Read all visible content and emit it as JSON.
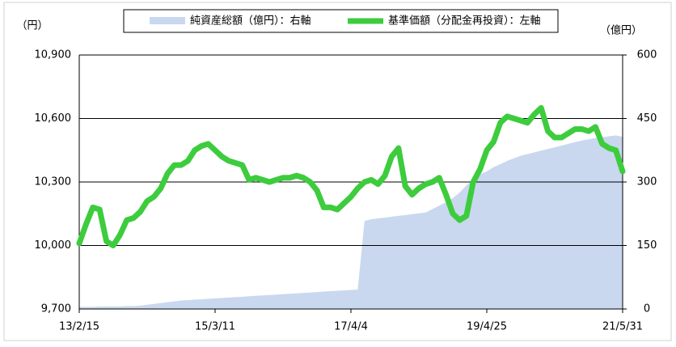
{
  "chart_data": {
    "type": "line-area",
    "left_axis_label": "（円）",
    "right_axis_label": "（億円）",
    "categories": [
      "13/2/15",
      null,
      null,
      null,
      null,
      null,
      null,
      null,
      null,
      null,
      null,
      null,
      null,
      null,
      null,
      null,
      null,
      null,
      null,
      null,
      "15/3/11",
      null,
      null,
      null,
      null,
      null,
      null,
      null,
      null,
      null,
      null,
      null,
      null,
      null,
      null,
      null,
      null,
      null,
      null,
      null,
      "17/4/4",
      null,
      null,
      null,
      null,
      null,
      null,
      null,
      null,
      null,
      null,
      null,
      null,
      null,
      null,
      null,
      null,
      null,
      null,
      null,
      "19/4/25",
      null,
      null,
      null,
      null,
      null,
      null,
      null,
      null,
      null,
      null,
      null,
      null,
      null,
      null,
      null,
      null,
      null,
      null,
      null,
      "21/5/31"
    ],
    "series": [
      {
        "name": "純資産総額（億円）：右軸",
        "type": "area",
        "axis": "y2",
        "color": "#c9d8ef",
        "values": [
          5,
          5,
          5,
          6,
          6,
          6,
          6,
          7,
          7,
          8,
          10,
          12,
          14,
          16,
          18,
          20,
          21,
          22,
          23,
          24,
          25,
          26,
          27,
          28,
          29,
          30,
          31,
          32,
          33,
          34,
          35,
          36,
          37,
          38,
          39,
          40,
          41,
          42,
          43,
          44,
          45,
          46,
          208,
          212,
          214,
          216,
          218,
          220,
          222,
          224,
          226,
          228,
          236,
          244,
          252,
          262,
          275,
          292,
          305,
          318,
          325,
          335,
          342,
          350,
          356,
          362,
          366,
          370,
          374,
          378,
          382,
          386,
          390,
          394,
          398,
          401,
          404,
          406,
          408,
          410,
          407
        ]
      },
      {
        "name": "基準価額（分配金再投資）：左軸",
        "type": "line",
        "axis": "y",
        "color": "#3dcc3d",
        "values": [
          10010,
          10100,
          10180,
          10170,
          10020,
          10000,
          10050,
          10120,
          10130,
          10160,
          10210,
          10230,
          10270,
          10340,
          10380,
          10380,
          10400,
          10450,
          10470,
          10480,
          10450,
          10420,
          10400,
          10390,
          10380,
          10310,
          10320,
          10310,
          10300,
          10310,
          10320,
          10320,
          10330,
          10320,
          10300,
          10260,
          10180,
          10180,
          10170,
          10200,
          10230,
          10270,
          10300,
          10310,
          10290,
          10330,
          10420,
          10460,
          10280,
          10240,
          10270,
          10290,
          10300,
          10320,
          10240,
          10150,
          10120,
          10140,
          10300,
          10360,
          10450,
          10490,
          10580,
          10610,
          10600,
          10590,
          10580,
          10620,
          10650,
          10540,
          10510,
          10510,
          10530,
          10550,
          10550,
          10540,
          10560,
          10480,
          10460,
          10450,
          10350
        ]
      }
    ],
    "ylim": [
      9700,
      10900
    ],
    "yticks": [
      {
        "value": 9700,
        "label": "9,700"
      },
      {
        "value": 10000,
        "label": "10,000"
      },
      {
        "value": 10300,
        "label": "10,300"
      },
      {
        "value": 10600,
        "label": "10,600"
      },
      {
        "value": 10900,
        "label": "10,900"
      }
    ],
    "y2lim": [
      0,
      600
    ],
    "y2ticks": [
      0,
      150,
      300,
      450,
      600
    ],
    "grid": true
  }
}
